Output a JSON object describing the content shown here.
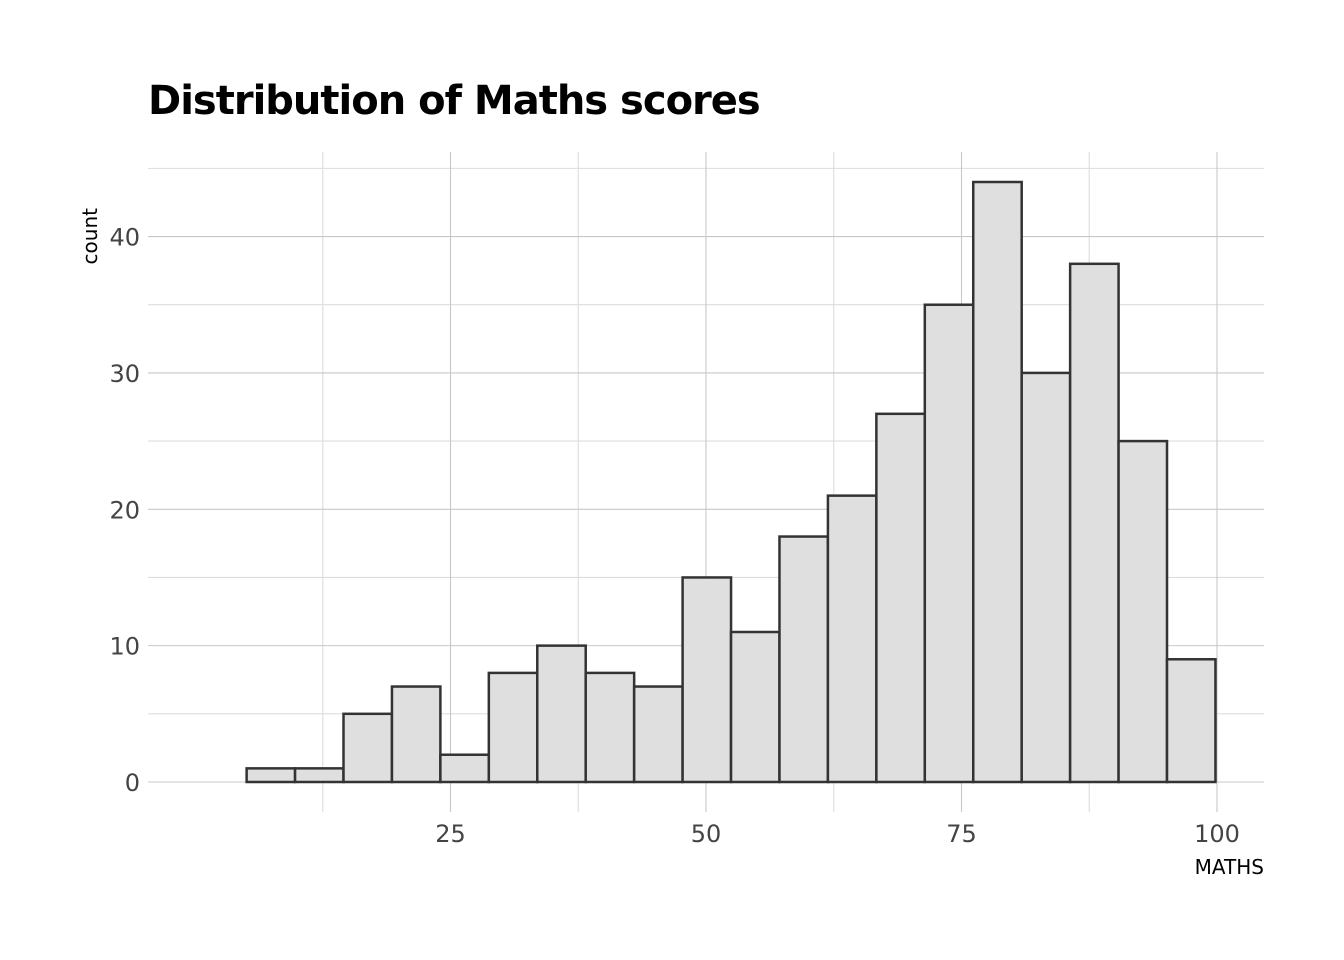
{
  "chart_data": {
    "type": "bar",
    "title": "Distribution of Maths scores",
    "xlabel": "MATHS",
    "ylabel": "count",
    "x_ticks": [
      25,
      50,
      75,
      100
    ],
    "y_ticks": [
      0,
      10,
      20,
      30,
      40
    ],
    "xlim": [
      -4.6,
      104.6
    ],
    "ylim": [
      -2.2,
      46.2
    ],
    "bin_width": 4.74,
    "bins": [
      {
        "start": 5.05,
        "end": 9.79,
        "count": 1
      },
      {
        "start": 9.79,
        "end": 14.53,
        "count": 1
      },
      {
        "start": 14.53,
        "end": 19.27,
        "count": 5
      },
      {
        "start": 19.27,
        "end": 24.01,
        "count": 7
      },
      {
        "start": 24.01,
        "end": 28.75,
        "count": 2
      },
      {
        "start": 28.75,
        "end": 33.49,
        "count": 8
      },
      {
        "start": 33.49,
        "end": 38.23,
        "count": 10
      },
      {
        "start": 38.23,
        "end": 42.97,
        "count": 8
      },
      {
        "start": 42.97,
        "end": 47.71,
        "count": 7
      },
      {
        "start": 47.71,
        "end": 52.45,
        "count": 15
      },
      {
        "start": 52.45,
        "end": 57.19,
        "count": 11
      },
      {
        "start": 57.19,
        "end": 61.93,
        "count": 18
      },
      {
        "start": 61.93,
        "end": 66.67,
        "count": 21
      },
      {
        "start": 66.67,
        "end": 71.41,
        "count": 27
      },
      {
        "start": 71.41,
        "end": 76.15,
        "count": 35
      },
      {
        "start": 76.15,
        "end": 80.89,
        "count": 44
      },
      {
        "start": 80.89,
        "end": 85.63,
        "count": 30
      },
      {
        "start": 85.63,
        "end": 90.37,
        "count": 38
      },
      {
        "start": 90.37,
        "end": 95.11,
        "count": 25
      },
      {
        "start": 95.11,
        "end": 99.85,
        "count": 9
      }
    ],
    "grid": true,
    "legend": "none",
    "colors": {
      "bar_fill": "#dfdfdf",
      "bar_outline": "#333333",
      "grid": "#c8c8c8"
    }
  }
}
